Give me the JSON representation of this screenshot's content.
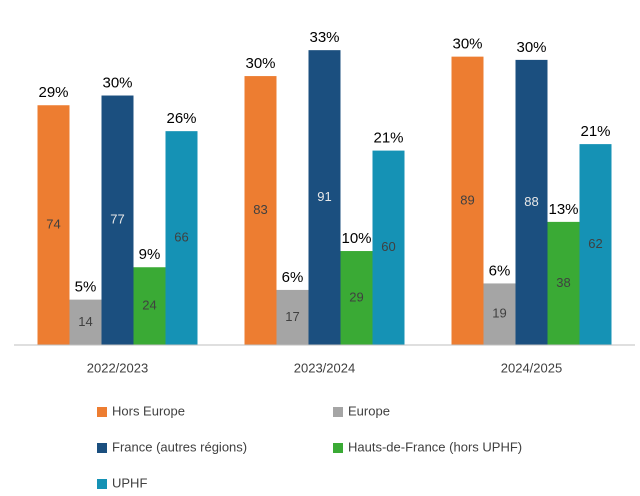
{
  "chart_data": {
    "type": "bar",
    "categories": [
      "2022/2023",
      "2023/2024",
      "2024/2025"
    ],
    "ylim": [
      0,
      100
    ],
    "series": [
      {
        "name": "Hors Europe",
        "color": "#ed7d31",
        "values": [
          74,
          83,
          89
        ],
        "share_labels": [
          "29%",
          "30%",
          "30%"
        ]
      },
      {
        "name": "Europe",
        "color": "#a5a5a5",
        "values": [
          14,
          17,
          19
        ],
        "share_labels": [
          "5%",
          "6%",
          "6%"
        ]
      },
      {
        "name": "France (autres régions)",
        "color": "#1b4f7f",
        "values": [
          77,
          91,
          88
        ],
        "share_labels": [
          "30%",
          "33%",
          "30%"
        ]
      },
      {
        "name": "Hauts-de-France (hors UPHF)",
        "color": "#3aaa35",
        "values": [
          24,
          29,
          38
        ],
        "share_labels": [
          "9%",
          "10%",
          "13%"
        ]
      },
      {
        "name": "UPHF",
        "color": "#1592b5",
        "values": [
          66,
          60,
          62
        ],
        "share_labels": [
          "26%",
          "21%",
          "21%"
        ]
      }
    ]
  }
}
